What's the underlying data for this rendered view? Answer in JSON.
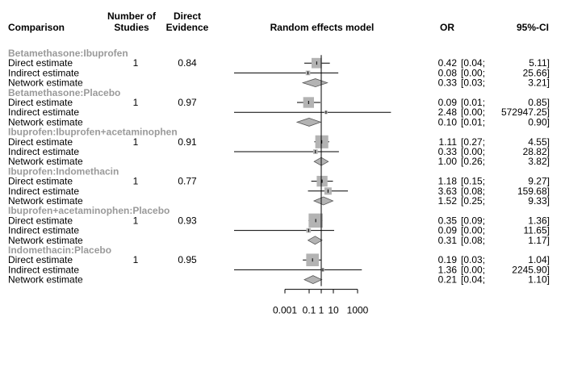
{
  "chart_data": {
    "type": "forest",
    "headers": {
      "comparison": "Comparison",
      "n_studies": [
        "Number of",
        "Studies"
      ],
      "direct_evidence": [
        "Direct",
        "Evidence"
      ],
      "plot": "Random effects model",
      "or": "OR",
      "ci": "95%-CI"
    },
    "x_scale": "log",
    "xlim": [
      0.001,
      1000
    ],
    "x_ticks": [
      {
        "value": 0.001,
        "label": "0.001"
      },
      {
        "value": 0.1,
        "label": "0.1"
      },
      {
        "value": 1,
        "label": "1"
      },
      {
        "value": 10,
        "label": "10"
      },
      {
        "value": 1000,
        "label": "1000"
      }
    ],
    "reference_line": 1,
    "groups": [
      {
        "name": "Betamethasone:Ibuprofen",
        "rows": [
          {
            "label": "Direct estimate",
            "studies": "1",
            "evidence": "0.84",
            "or": 0.42,
            "lo": 0.04,
            "hi": 5.11,
            "or_text": "0.42",
            "ci_text": "[0.04;",
            "hi_text": "5.11]",
            "kind": "square",
            "weight": 0.5
          },
          {
            "label": "Indirect estimate",
            "studies": "",
            "evidence": "",
            "or": 0.08,
            "lo": 0.0,
            "hi": 25.66,
            "or_text": "0.08",
            "ci_text": "[0.00;",
            "hi_text": "25.66]",
            "kind": "square",
            "weight": 0.1
          },
          {
            "label": "Network estimate",
            "studies": "",
            "evidence": "",
            "or": 0.33,
            "lo": 0.03,
            "hi": 3.21,
            "or_text": "0.33",
            "ci_text": "[0.03;",
            "hi_text": "3.21]",
            "kind": "diamond"
          }
        ]
      },
      {
        "name": "Betamethasone:Placebo",
        "rows": [
          {
            "label": "Direct estimate",
            "studies": "1",
            "evidence": "0.97",
            "or": 0.09,
            "lo": 0.01,
            "hi": 0.85,
            "or_text": "0.09",
            "ci_text": "[0.01;",
            "hi_text": "0.85]",
            "kind": "square",
            "weight": 0.55
          },
          {
            "label": "Indirect estimate",
            "studies": "",
            "evidence": "",
            "or": 2.48,
            "lo": 0.0,
            "hi": 572947.25,
            "or_text": "2.48",
            "ci_text": "[0.00;",
            "hi_text": "572947.25]",
            "kind": "square",
            "weight": 0.05
          },
          {
            "label": "Network estimate",
            "studies": "",
            "evidence": "",
            "or": 0.1,
            "lo": 0.01,
            "hi": 0.9,
            "or_text": "0.10",
            "ci_text": "[0.01;",
            "hi_text": "0.90]",
            "kind": "diamond"
          }
        ]
      },
      {
        "name": "Ibuprofen:Ibuprofen+acetaminophen",
        "rows": [
          {
            "label": "Direct estimate",
            "studies": "1",
            "evidence": "0.91",
            "or": 1.11,
            "lo": 0.27,
            "hi": 4.55,
            "or_text": "1.11",
            "ci_text": "[0.27;",
            "hi_text": "4.55]",
            "kind": "square",
            "weight": 0.8
          },
          {
            "label": "Indirect estimate",
            "studies": "",
            "evidence": "",
            "or": 0.33,
            "lo": 0.0,
            "hi": 28.82,
            "or_text": "0.33",
            "ci_text": "[0.00;",
            "hi_text": "28.82]",
            "kind": "square",
            "weight": 0.1
          },
          {
            "label": "Network estimate",
            "studies": "",
            "evidence": "",
            "or": 1.0,
            "lo": 0.26,
            "hi": 3.82,
            "or_text": "1.00",
            "ci_text": "[0.26;",
            "hi_text": "3.82]",
            "kind": "diamond"
          }
        ]
      },
      {
        "name": "Ibuprofen:Indomethacin",
        "rows": [
          {
            "label": "Direct estimate",
            "studies": "1",
            "evidence": "0.77",
            "or": 1.18,
            "lo": 0.15,
            "hi": 9.27,
            "or_text": "1.18",
            "ci_text": "[0.15;",
            "hi_text": "9.27]",
            "kind": "square",
            "weight": 0.55
          },
          {
            "label": "Indirect estimate",
            "studies": "",
            "evidence": "",
            "or": 3.63,
            "lo": 0.08,
            "hi": 159.68,
            "or_text": "3.63",
            "ci_text": "[0.08;",
            "hi_text": "159.68]",
            "kind": "square",
            "weight": 0.25
          },
          {
            "label": "Network estimate",
            "studies": "",
            "evidence": "",
            "or": 1.52,
            "lo": 0.25,
            "hi": 9.33,
            "or_text": "1.52",
            "ci_text": "[0.25;",
            "hi_text": "9.33]",
            "kind": "diamond"
          }
        ]
      },
      {
        "name": "Ibuprofen+acetaminophen:Placebo",
        "rows": [
          {
            "label": "Direct estimate",
            "studies": "1",
            "evidence": "0.93",
            "or": 0.35,
            "lo": 0.09,
            "hi": 1.36,
            "or_text": "0.35",
            "ci_text": "[0.09;",
            "hi_text": "1.36]",
            "kind": "square",
            "weight": 0.95
          },
          {
            "label": "Indirect estimate",
            "studies": "",
            "evidence": "",
            "or": 0.09,
            "lo": 0.0,
            "hi": 11.65,
            "or_text": "0.09",
            "ci_text": "[0.00;",
            "hi_text": "11.65]",
            "kind": "square",
            "weight": 0.1
          },
          {
            "label": "Network estimate",
            "studies": "",
            "evidence": "",
            "or": 0.31,
            "lo": 0.08,
            "hi": 1.17,
            "or_text": "0.31",
            "ci_text": "[0.08;",
            "hi_text": "1.17]",
            "kind": "diamond"
          }
        ]
      },
      {
        "name": "Indomethacin:Placebo",
        "rows": [
          {
            "label": "Direct estimate",
            "studies": "1",
            "evidence": "0.95",
            "or": 0.19,
            "lo": 0.03,
            "hi": 1.04,
            "or_text": "0.19",
            "ci_text": "[0.03;",
            "hi_text": "1.04]",
            "kind": "square",
            "weight": 0.75
          },
          {
            "label": "Indirect estimate",
            "studies": "",
            "evidence": "",
            "or": 1.36,
            "lo": 0.0,
            "hi": 2245.9,
            "or_text": "1.36",
            "ci_text": "[0.00;",
            "hi_text": "2245.90]",
            "kind": "square",
            "weight": 0.05
          },
          {
            "label": "Network estimate",
            "studies": "",
            "evidence": "",
            "or": 0.21,
            "lo": 0.04,
            "hi": 1.1,
            "or_text": "0.21",
            "ci_text": "[0.04;",
            "hi_text": "1.10]",
            "kind": "diamond"
          }
        ]
      }
    ],
    "colors": {
      "group_label": "#9a9a9a",
      "square": "#b3b3b3",
      "diamond": "#b3b3b3",
      "line": "#000000"
    }
  }
}
